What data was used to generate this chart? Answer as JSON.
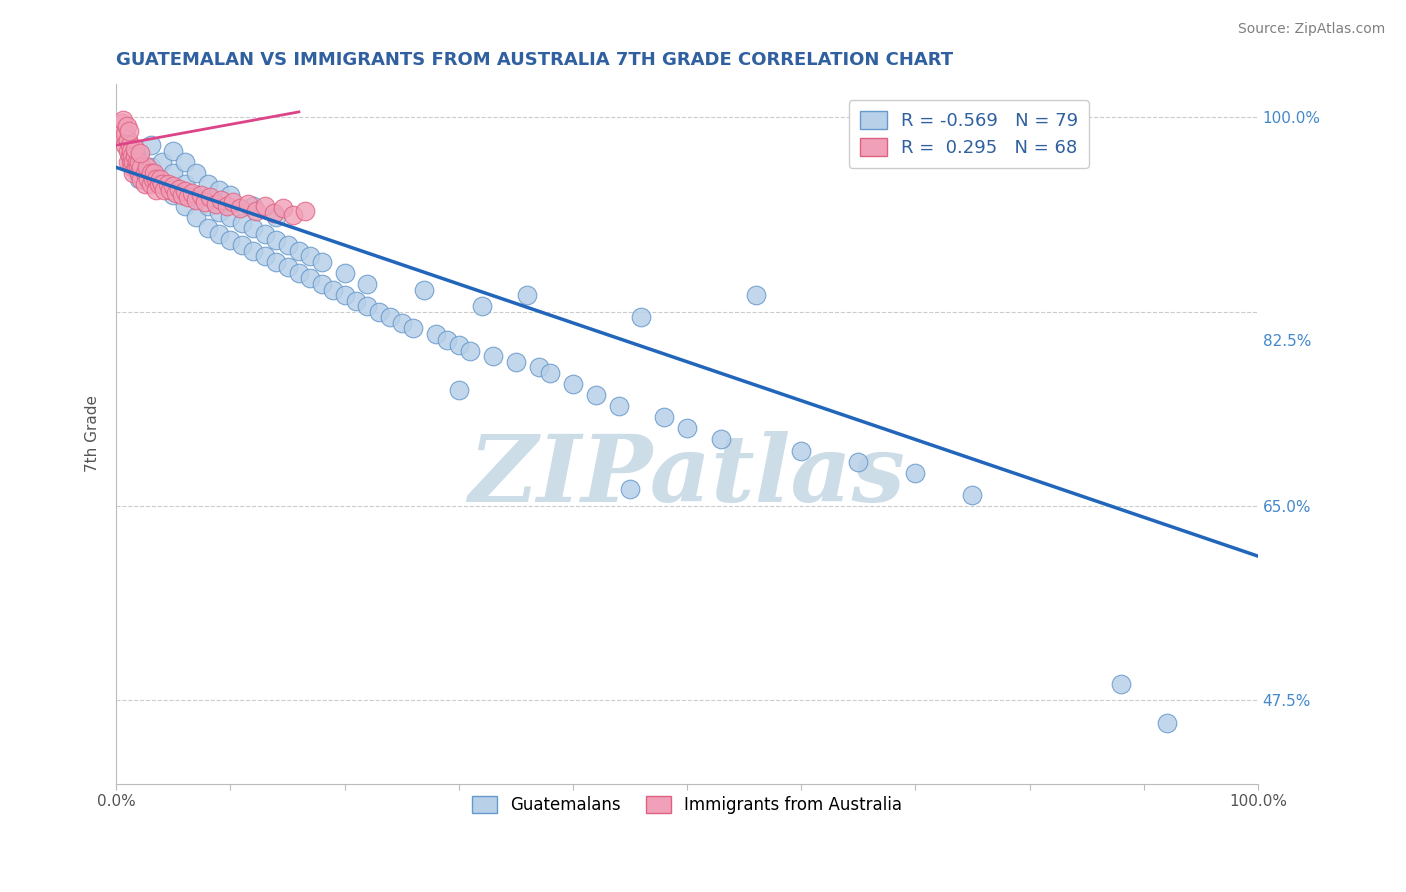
{
  "title": "GUATEMALAN VS IMMIGRANTS FROM AUSTRALIA 7TH GRADE CORRELATION CHART",
  "source_text": "Source: ZipAtlas.com",
  "ylabel": "7th Grade",
  "watermark": "ZIPatlas",
  "xlim": [
    0.0,
    1.0
  ],
  "ylim": [
    0.4,
    1.03
  ],
  "blue_color": "#b8d0e8",
  "blue_edge": "#6699cc",
  "pink_color": "#f0a0b8",
  "pink_edge": "#e06080",
  "trend_blue": "#2266bb",
  "trend_pink": "#dd4488",
  "blue_trend_x": [
    0.0,
    1.0
  ],
  "blue_trend_y": [
    0.955,
    0.605
  ],
  "pink_trend_x": [
    0.0,
    0.16
  ],
  "pink_trend_y": [
    0.975,
    1.005
  ],
  "title_color": "#3060a0",
  "source_color": "#808080",
  "watermark_color": "#ccdde8",
  "grid_color": "#cccccc",
  "axis_color": "#bbbbbb",
  "ytick_positions": [
    0.475,
    0.5,
    0.525,
    0.55,
    0.575,
    0.6,
    0.625,
    0.65,
    0.675,
    0.7,
    0.725,
    0.75,
    0.775,
    0.8,
    0.825,
    0.85,
    0.875,
    0.9,
    0.925,
    0.95,
    0.975,
    1.0
  ],
  "ytick_labels": [
    "47.5%",
    "",
    "",
    "",
    "",
    "",
    "",
    "65.0%",
    "",
    "",
    "",
    "",
    "",
    "82.5%",
    "",
    "",
    "",
    "",
    "",
    "",
    "",
    "100.0%"
  ],
  "blue_x": [
    0.02,
    0.02,
    0.03,
    0.03,
    0.04,
    0.04,
    0.05,
    0.05,
    0.05,
    0.06,
    0.06,
    0.06,
    0.07,
    0.07,
    0.07,
    0.08,
    0.08,
    0.08,
    0.09,
    0.09,
    0.09,
    0.1,
    0.1,
    0.1,
    0.11,
    0.11,
    0.12,
    0.12,
    0.12,
    0.13,
    0.13,
    0.14,
    0.14,
    0.14,
    0.15,
    0.15,
    0.16,
    0.16,
    0.17,
    0.17,
    0.18,
    0.18,
    0.19,
    0.2,
    0.2,
    0.21,
    0.22,
    0.22,
    0.23,
    0.24,
    0.25,
    0.26,
    0.27,
    0.28,
    0.29,
    0.3,
    0.31,
    0.32,
    0.33,
    0.35,
    0.36,
    0.37,
    0.38,
    0.4,
    0.42,
    0.44,
    0.46,
    0.48,
    0.5,
    0.53,
    0.56,
    0.6,
    0.65,
    0.7,
    0.75,
    0.88,
    0.92,
    0.3,
    0.45
  ],
  "blue_y": [
    0.965,
    0.945,
    0.955,
    0.975,
    0.94,
    0.96,
    0.93,
    0.95,
    0.97,
    0.92,
    0.94,
    0.96,
    0.91,
    0.93,
    0.95,
    0.9,
    0.92,
    0.94,
    0.895,
    0.915,
    0.935,
    0.89,
    0.91,
    0.93,
    0.885,
    0.905,
    0.88,
    0.9,
    0.92,
    0.875,
    0.895,
    0.87,
    0.89,
    0.91,
    0.865,
    0.885,
    0.86,
    0.88,
    0.855,
    0.875,
    0.85,
    0.87,
    0.845,
    0.84,
    0.86,
    0.835,
    0.83,
    0.85,
    0.825,
    0.82,
    0.815,
    0.81,
    0.845,
    0.805,
    0.8,
    0.795,
    0.79,
    0.83,
    0.785,
    0.78,
    0.84,
    0.775,
    0.77,
    0.76,
    0.75,
    0.74,
    0.82,
    0.73,
    0.72,
    0.71,
    0.84,
    0.7,
    0.69,
    0.68,
    0.66,
    0.49,
    0.455,
    0.755,
    0.665
  ],
  "pink_x": [
    0.005,
    0.005,
    0.007,
    0.008,
    0.008,
    0.01,
    0.01,
    0.01,
    0.012,
    0.012,
    0.013,
    0.013,
    0.014,
    0.014,
    0.015,
    0.015,
    0.016,
    0.017,
    0.018,
    0.019,
    0.02,
    0.02,
    0.022,
    0.022,
    0.025,
    0.025,
    0.027,
    0.028,
    0.03,
    0.03,
    0.032,
    0.033,
    0.035,
    0.035,
    0.037,
    0.038,
    0.04,
    0.042,
    0.045,
    0.047,
    0.05,
    0.052,
    0.055,
    0.058,
    0.06,
    0.063,
    0.066,
    0.07,
    0.074,
    0.078,
    0.082,
    0.087,
    0.092,
    0.097,
    0.102,
    0.108,
    0.115,
    0.122,
    0.13,
    0.138,
    0.146,
    0.155,
    0.165,
    0.006,
    0.009,
    0.011,
    0.016,
    0.021
  ],
  "pink_y": [
    0.995,
    0.985,
    0.99,
    0.985,
    0.975,
    0.98,
    0.97,
    0.96,
    0.975,
    0.965,
    0.97,
    0.96,
    0.965,
    0.955,
    0.96,
    0.95,
    0.965,
    0.955,
    0.96,
    0.955,
    0.95,
    0.96,
    0.955,
    0.945,
    0.95,
    0.94,
    0.955,
    0.945,
    0.95,
    0.94,
    0.945,
    0.95,
    0.945,
    0.935,
    0.94,
    0.945,
    0.94,
    0.935,
    0.94,
    0.935,
    0.938,
    0.932,
    0.936,
    0.93,
    0.934,
    0.928,
    0.932,
    0.926,
    0.93,
    0.924,
    0.928,
    0.922,
    0.926,
    0.92,
    0.924,
    0.918,
    0.922,
    0.916,
    0.92,
    0.914,
    0.918,
    0.912,
    0.916,
    0.998,
    0.992,
    0.988,
    0.972,
    0.968
  ]
}
